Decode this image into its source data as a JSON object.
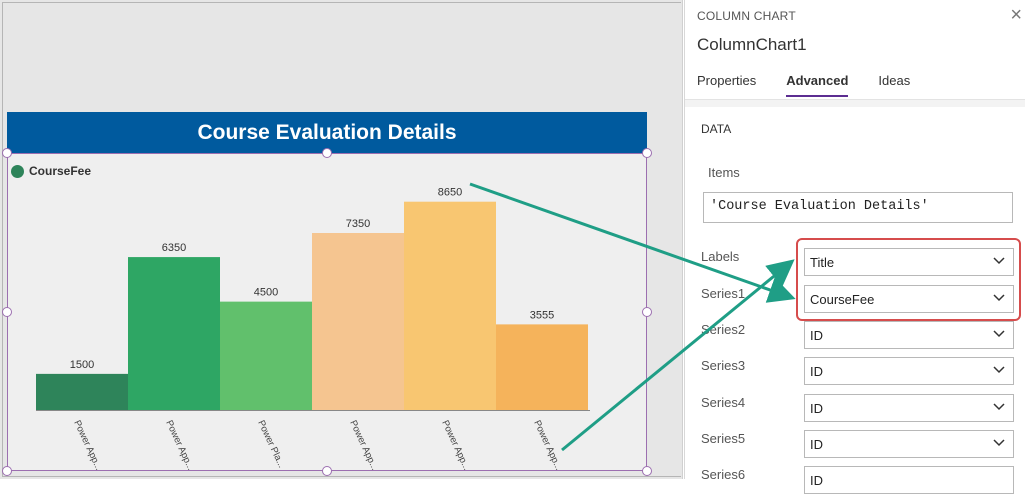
{
  "chart": {
    "title": "Course Evaluation Details",
    "legend_label": "CourseFee",
    "chart_data": {
      "type": "bar",
      "title": "Course Evaluation Details",
      "categories": [
        "Power App...",
        "Power App...",
        "Power Pla...",
        "Power App...",
        "Power App...",
        "Power App..."
      ],
      "series": [
        {
          "name": "CourseFee",
          "values": [
            1500,
            6350,
            4500,
            7350,
            8650,
            3555
          ]
        }
      ],
      "data_labels": [
        "1500",
        "6350",
        "4500",
        "7350",
        "8650",
        "3555"
      ],
      "ylim": [
        0,
        9800
      ],
      "bar_colors": [
        "#2e845a",
        "#2ea664",
        "#61c06c",
        "#f5c590",
        "#f8c671",
        "#f5b35b"
      ],
      "grid": false,
      "legend": "top-left"
    }
  },
  "panel": {
    "type_label": "COLUMN CHART",
    "control_name": "ColumnChart1",
    "close_icon": "×",
    "tabs": [
      {
        "label": "Properties",
        "active": false
      },
      {
        "label": "Advanced",
        "active": true
      },
      {
        "label": "Ideas",
        "active": false
      }
    ],
    "section": "DATA",
    "items_label": "Items",
    "items_value": "'Course Evaluation Details'",
    "rows": [
      {
        "label": "Labels",
        "value": "Title"
      },
      {
        "label": "Series1",
        "value": "CourseFee"
      },
      {
        "label": "Series2",
        "value": "ID"
      },
      {
        "label": "Series3",
        "value": "ID"
      },
      {
        "label": "Series4",
        "value": "ID"
      },
      {
        "label": "Series5",
        "value": "ID"
      },
      {
        "label": "Series6",
        "value": "ID"
      }
    ]
  },
  "colors": {
    "title_bar": "#005a9e",
    "selection": "#9c6fb0",
    "arrow": "#1f9e86",
    "highlight": "#d64c4c",
    "tab_accent": "#5c2d91"
  }
}
